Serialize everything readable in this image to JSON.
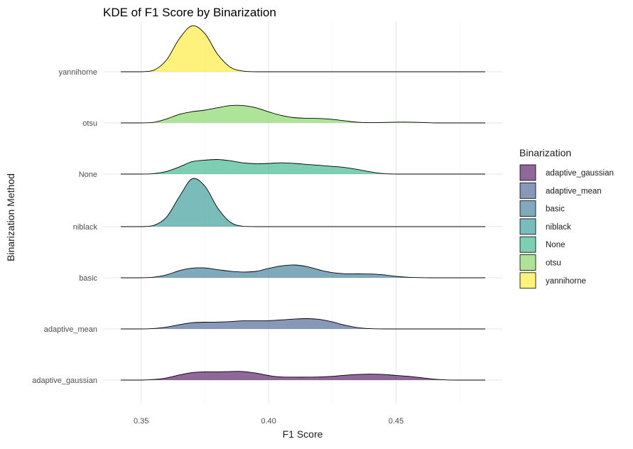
{
  "chart_data": {
    "type": "area",
    "subtype": "ridgeline",
    "title": "KDE of F1 Score by Binarization",
    "xlabel": "F1 Score",
    "ylabel": "Binarization Method",
    "xlim": [
      0.342,
      0.485
    ],
    "x_ticks": [
      0.35,
      0.4,
      0.45
    ],
    "x_tick_labels": [
      "0.35",
      "0.40",
      "0.45"
    ],
    "grid": true,
    "legend": {
      "title": "Binarization",
      "position": "right"
    },
    "categories": [
      "adaptive_gaussian",
      "adaptive_mean",
      "basic",
      "niblack",
      "None",
      "otsu",
      "yannihorne"
    ],
    "series": [
      {
        "name": "adaptive_gaussian",
        "color": "#440154",
        "x": [
          0.342,
          0.35,
          0.355,
          0.36,
          0.365,
          0.37,
          0.375,
          0.38,
          0.385,
          0.39,
          0.395,
          0.4,
          0.405,
          0.41,
          0.415,
          0.42,
          0.425,
          0.43,
          0.435,
          0.44,
          0.445,
          0.45,
          0.455,
          0.46,
          0.465,
          0.47,
          0.475,
          0.48,
          0.485
        ],
        "density": [
          0.0,
          0.0,
          0.04,
          0.14,
          0.33,
          0.48,
          0.53,
          0.53,
          0.55,
          0.55,
          0.45,
          0.29,
          0.2,
          0.19,
          0.19,
          0.2,
          0.24,
          0.31,
          0.36,
          0.38,
          0.36,
          0.3,
          0.24,
          0.15,
          0.06,
          0.01,
          0.0,
          0.0,
          0.0
        ]
      },
      {
        "name": "adaptive_mean",
        "color": "#3b528b",
        "x": [
          0.342,
          0.35,
          0.355,
          0.36,
          0.365,
          0.37,
          0.375,
          0.38,
          0.385,
          0.39,
          0.395,
          0.4,
          0.405,
          0.41,
          0.415,
          0.42,
          0.425,
          0.43,
          0.435,
          0.44,
          0.445,
          0.45,
          0.455,
          0.46,
          0.465,
          0.47,
          0.475,
          0.48,
          0.485
        ],
        "density": [
          0.0,
          0.0,
          0.03,
          0.12,
          0.27,
          0.4,
          0.43,
          0.44,
          0.47,
          0.52,
          0.52,
          0.53,
          0.58,
          0.63,
          0.66,
          0.61,
          0.45,
          0.24,
          0.08,
          0.02,
          0.0,
          0.0,
          0.0,
          0.0,
          0.0,
          0.0,
          0.0,
          0.0,
          0.0
        ]
      },
      {
        "name": "basic",
        "color": "#21908c",
        "x": [
          0.342,
          0.35,
          0.355,
          0.36,
          0.365,
          0.37,
          0.375,
          0.38,
          0.385,
          0.39,
          0.395,
          0.4,
          0.405,
          0.41,
          0.415,
          0.42,
          0.425,
          0.43,
          0.435,
          0.44,
          0.445,
          0.45,
          0.455,
          0.46,
          0.465,
          0.47,
          0.475,
          0.48,
          0.485
        ],
        "density": [
          0.0,
          0.0,
          0.04,
          0.19,
          0.46,
          0.62,
          0.63,
          0.52,
          0.42,
          0.37,
          0.41,
          0.6,
          0.76,
          0.82,
          0.72,
          0.5,
          0.33,
          0.26,
          0.25,
          0.24,
          0.19,
          0.09,
          0.03,
          0.01,
          0.0,
          0.0,
          0.0,
          0.0,
          0.0
        ]
      },
      {
        "name": "niblack",
        "color": "#21908c",
        "x": [
          0.342,
          0.35,
          0.355,
          0.36,
          0.365,
          0.37,
          0.375,
          0.38,
          0.385,
          0.39,
          0.395,
          0.4,
          0.42,
          0.44,
          0.46,
          0.485
        ],
        "density": [
          0.0,
          0.0,
          0.08,
          0.62,
          1.92,
          3.06,
          2.59,
          1.2,
          0.28,
          0.02,
          0.0,
          0.0,
          0.0,
          0.0,
          0.0,
          0.0
        ]
      },
      {
        "name": "None",
        "color": "#5ec962",
        "x": [
          0.342,
          0.35,
          0.355,
          0.36,
          0.365,
          0.37,
          0.375,
          0.38,
          0.385,
          0.39,
          0.395,
          0.4,
          0.405,
          0.41,
          0.415,
          0.42,
          0.425,
          0.43,
          0.435,
          0.44,
          0.445,
          0.45,
          0.455,
          0.46,
          0.465,
          0.47,
          0.475,
          0.48,
          0.485
        ],
        "density": [
          0.0,
          0.0,
          0.03,
          0.17,
          0.46,
          0.79,
          0.89,
          0.93,
          0.85,
          0.72,
          0.66,
          0.68,
          0.72,
          0.68,
          0.62,
          0.56,
          0.49,
          0.42,
          0.29,
          0.14,
          0.03,
          0.0,
          0.0,
          0.0,
          0.0,
          0.0,
          0.0,
          0.0,
          0.0
        ]
      },
      {
        "name": "otsu",
        "color": "#7ad151",
        "x": [
          0.342,
          0.35,
          0.355,
          0.36,
          0.365,
          0.37,
          0.375,
          0.38,
          0.385,
          0.39,
          0.395,
          0.4,
          0.405,
          0.41,
          0.415,
          0.42,
          0.425,
          0.43,
          0.435,
          0.44,
          0.445,
          0.45,
          0.455,
          0.46,
          0.465,
          0.47,
          0.475,
          0.48,
          0.485
        ],
        "density": [
          0.0,
          0.0,
          0.04,
          0.26,
          0.55,
          0.72,
          0.82,
          0.97,
          1.11,
          1.11,
          0.97,
          0.71,
          0.48,
          0.34,
          0.3,
          0.28,
          0.23,
          0.13,
          0.04,
          0.02,
          0.03,
          0.05,
          0.05,
          0.03,
          0.0,
          0.0,
          0.0,
          0.0,
          0.0
        ]
      },
      {
        "name": "yannihorne",
        "color": "#fde725",
        "x": [
          0.342,
          0.35,
          0.355,
          0.36,
          0.365,
          0.37,
          0.375,
          0.38,
          0.385,
          0.39,
          0.395,
          0.4,
          0.42,
          0.44,
          0.46,
          0.485
        ],
        "density": [
          0.0,
          0.0,
          0.1,
          0.77,
          2.12,
          2.94,
          2.44,
          1.12,
          0.29,
          0.04,
          0.0,
          0.0,
          0.0,
          0.0,
          0.0,
          0.0
        ]
      }
    ]
  }
}
